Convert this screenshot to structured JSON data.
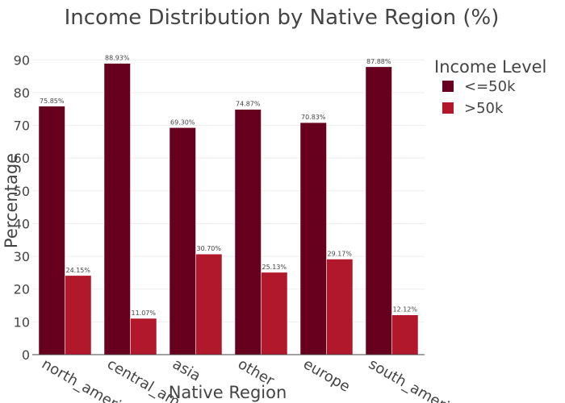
{
  "chart_data": {
    "type": "bar",
    "title": "Income Distribution by Native Region (%)",
    "xlabel": "Native Region",
    "ylabel": "Percentage",
    "categories": [
      "north_america",
      "central_am",
      "asia",
      "other",
      "europe",
      "south_america"
    ],
    "series": [
      {
        "name": "<=50k",
        "color": "#67001f",
        "values": [
          75.85,
          88.93,
          69.3,
          74.87,
          70.83,
          87.88
        ],
        "labels": [
          "75.85%",
          "88.93%",
          "69.30%",
          "74.87%",
          "70.83%",
          "87.88%"
        ]
      },
      {
        "name": ">50k",
        "color": "#b2182b",
        "values": [
          24.15,
          11.07,
          30.7,
          25.13,
          29.17,
          12.12
        ],
        "labels": [
          "24.15%",
          "11.07%",
          "30.70%",
          "25.13%",
          "29.17%",
          "12.12%"
        ]
      }
    ],
    "ylim": [
      0,
      94
    ],
    "yticks": [
      0,
      10,
      20,
      30,
      40,
      50,
      60,
      70,
      80,
      90
    ],
    "grid": true,
    "legend": {
      "title": "Income Level",
      "position": "top-right"
    }
  }
}
